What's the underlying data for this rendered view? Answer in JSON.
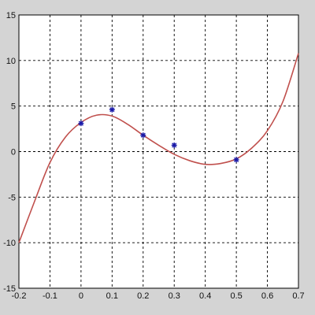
{
  "chart_data": {
    "type": "scatter",
    "title": "",
    "xlabel": "",
    "ylabel": "",
    "xlim": [
      -0.2,
      0.7
    ],
    "ylim": [
      -15,
      15
    ],
    "grid": true,
    "x_ticks": [
      -0.2,
      -0.1,
      0,
      0.1,
      0.2,
      0.3,
      0.4,
      0.5,
      0.6,
      0.7
    ],
    "y_ticks": [
      15,
      10,
      5,
      0,
      -5,
      -10,
      -15
    ],
    "x_tick_labels": [
      "-0.2",
      "-0.1",
      "0",
      "0.1",
      "0.2",
      "0.3",
      "0.4",
      "0.5",
      "0.6",
      "0.7"
    ],
    "y_tick_labels": [
      "15",
      "10",
      "5",
      "0",
      "-5",
      "-10",
      "-15"
    ],
    "series": [
      {
        "kind": "points",
        "marker": "star",
        "color": "#1a1aa8",
        "x": [
          0,
          0.1,
          0.2,
          0.3,
          0.5
        ],
        "y": [
          3.1,
          4.6,
          1.8,
          0.7,
          -0.9
        ]
      },
      {
        "kind": "line",
        "color": "#c0504d",
        "x": [
          -0.2,
          -0.15,
          -0.1,
          -0.05,
          0,
          0.05,
          0.1,
          0.15,
          0.2,
          0.25,
          0.3,
          0.35,
          0.4,
          0.45,
          0.5,
          0.55,
          0.6,
          0.65,
          0.7
        ],
        "y": [
          -10.0,
          -5.5,
          -1.2,
          1.6,
          3.2,
          4.0,
          3.9,
          3.0,
          1.8,
          0.7,
          -0.3,
          -1.0,
          -1.4,
          -1.3,
          -0.8,
          0.4,
          2.3,
          5.5,
          10.8
        ]
      }
    ]
  }
}
